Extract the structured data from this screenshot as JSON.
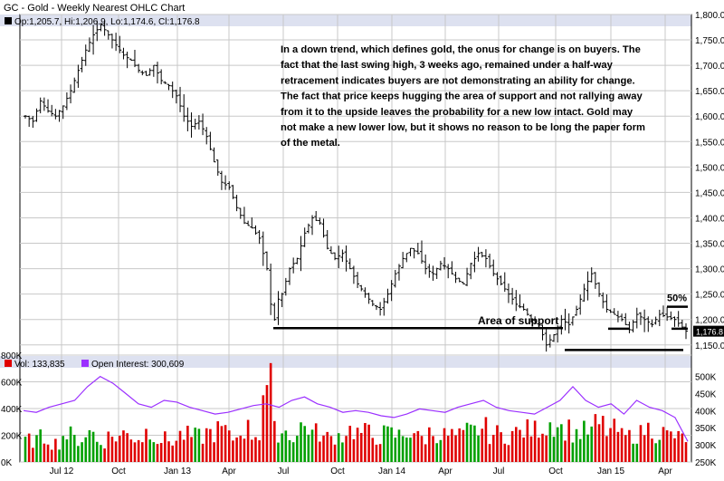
{
  "title": "GC - Gold - Weekly Nearest OHLC Chart",
  "price_legend": "Op:1,205.7, Hi:1,206.9, Lo:1,174.6, Cl:1,176.8",
  "volume_legend": "Vol: 133,835",
  "oi_legend": "Open Interest: 300,609",
  "annotation_lines": [
    "In a down trend, which defines gold, the onus for change is on buyers.  The",
    "fact that the last swing high, 3 weeks ago, remained under a half-way",
    "retracement indicates buyers are not demonstrating an ability for change.",
    "The fact that price keeps hugging the area of support and not rallying away",
    "from it to the upside leaves the probability for  a new low intact.  Gold may",
    "not make a new lower low, but it shows no reason to be long the paper form",
    "of the metal."
  ],
  "support_label": "Area of support",
  "fifty_label": "50%",
  "last_price_label": "1,176.8",
  "colors": {
    "price_bar": "#000000",
    "grid": "#c8c8c8",
    "volume_up": "#00a000",
    "volume_down": "#e00000",
    "open_interest": "#9b30ff",
    "header": "#dde1f0"
  },
  "chart_data": [
    {
      "type": "line",
      "name": "price",
      "x_ticks": [
        "Jul 12",
        "Oct",
        "Jan 13",
        "Apr",
        "Jul",
        "Oct",
        "Jan 14",
        "Apr",
        "Jul",
        "Oct",
        "Jan 15",
        "Apr"
      ],
      "y_ticks": [
        "1,800.00",
        "1,750.00",
        "1,700.00",
        "1,650.00",
        "1,600.00",
        "1,550.00",
        "1,500.00",
        "1,450.00",
        "1,400.00",
        "1,350.00",
        "1,300.00",
        "1,250.00",
        "1,200.00",
        "1,150.00"
      ],
      "ylim": [
        1130,
        1800
      ],
      "close_path": [
        [
          0,
          1600
        ],
        [
          2,
          1590
        ],
        [
          4,
          1630
        ],
        [
          6,
          1610
        ],
        [
          8,
          1600
        ],
        [
          10,
          1620
        ],
        [
          12,
          1650
        ],
        [
          14,
          1690
        ],
        [
          16,
          1730
        ],
        [
          18,
          1760
        ],
        [
          20,
          1780
        ],
        [
          22,
          1760
        ],
        [
          24,
          1740
        ],
        [
          26,
          1720
        ],
        [
          28,
          1710
        ],
        [
          30,
          1690
        ],
        [
          32,
          1680
        ],
        [
          34,
          1700
        ],
        [
          36,
          1670
        ],
        [
          38,
          1660
        ],
        [
          40,
          1640
        ],
        [
          42,
          1600
        ],
        [
          44,
          1580
        ],
        [
          46,
          1590
        ],
        [
          48,
          1560
        ],
        [
          50,
          1510
        ],
        [
          52,
          1470
        ],
        [
          54,
          1460
        ],
        [
          56,
          1420
        ],
        [
          58,
          1390
        ],
        [
          60,
          1380
        ],
        [
          62,
          1360
        ],
        [
          64,
          1300
        ],
        [
          65,
          1230
        ],
        [
          66,
          1200
        ],
        [
          67,
          1240
        ],
        [
          68,
          1250
        ],
        [
          70,
          1300
        ],
        [
          72,
          1320
        ],
        [
          74,
          1370
        ],
        [
          76,
          1400
        ],
        [
          78,
          1390
        ],
        [
          80,
          1340
        ],
        [
          82,
          1320
        ],
        [
          84,
          1330
        ],
        [
          86,
          1300
        ],
        [
          88,
          1270
        ],
        [
          90,
          1250
        ],
        [
          92,
          1230
        ],
        [
          94,
          1220
        ],
        [
          96,
          1250
        ],
        [
          98,
          1290
        ],
        [
          100,
          1320
        ],
        [
          102,
          1340
        ],
        [
          104,
          1330
        ],
        [
          106,
          1300
        ],
        [
          108,
          1290
        ],
        [
          110,
          1310
        ],
        [
          112,
          1300
        ],
        [
          114,
          1280
        ],
        [
          116,
          1270
        ],
        [
          118,
          1310
        ],
        [
          120,
          1330
        ],
        [
          122,
          1320
        ],
        [
          124,
          1290
        ],
        [
          126,
          1270
        ],
        [
          128,
          1250
        ],
        [
          130,
          1230
        ],
        [
          132,
          1220
        ],
        [
          134,
          1200
        ],
        [
          136,
          1190
        ],
        [
          137,
          1170
        ],
        [
          138,
          1150
        ],
        [
          140,
          1170
        ],
        [
          142,
          1200
        ],
        [
          144,
          1190
        ],
        [
          146,
          1220
        ],
        [
          148,
          1260
        ],
        [
          150,
          1290
        ],
        [
          152,
          1250
        ],
        [
          154,
          1220
        ],
        [
          156,
          1210
        ],
        [
          158,
          1200
        ],
        [
          160,
          1180
        ],
        [
          162,
          1210
        ],
        [
          164,
          1200
        ],
        [
          166,
          1190
        ],
        [
          168,
          1210
        ],
        [
          170,
          1205
        ],
        [
          172,
          1200
        ],
        [
          174,
          1185
        ],
        [
          175,
          1177
        ]
      ],
      "support_level": 1183,
      "lower_support_level": 1140,
      "fifty_percent_level": 1225,
      "mid_level": 1182
    },
    {
      "type": "bar",
      "name": "volume",
      "y_ticks": [
        "800K",
        "600K",
        "400K",
        "200K",
        "0K"
      ],
      "ylim": [
        0,
        800000
      ],
      "sample_values": [
        170000,
        190000,
        150000,
        210000,
        180000,
        230000,
        160000,
        200000,
        220000,
        190000,
        240000,
        180000,
        170000,
        210000,
        200000,
        230000,
        250000,
        190000,
        260000,
        220000,
        600000,
        240000,
        210000,
        280000,
        230000,
        190000,
        210000,
        250000,
        230000,
        200000,
        220000,
        210000,
        240000,
        190000,
        230000,
        210000,
        200000,
        240000,
        260000,
        220000,
        210000,
        230000,
        250000,
        280000,
        310000,
        260000,
        230000,
        240000,
        290000,
        250000,
        200000,
        220000,
        260000,
        230000,
        210000,
        190000
      ]
    },
    {
      "type": "line",
      "name": "open interest",
      "y_ticks": [
        "500K",
        "450K",
        "400K",
        "350K",
        "300K",
        "250K"
      ],
      "ylim": [
        250000,
        520000
      ],
      "sample_values": [
        400000,
        395000,
        410000,
        420000,
        430000,
        470000,
        500000,
        480000,
        450000,
        420000,
        410000,
        430000,
        425000,
        410000,
        400000,
        390000,
        395000,
        405000,
        415000,
        420000,
        410000,
        430000,
        440000,
        420000,
        410000,
        395000,
        400000,
        395000,
        385000,
        380000,
        390000,
        405000,
        400000,
        395000,
        410000,
        420000,
        430000,
        410000,
        400000,
        395000,
        390000,
        410000,
        430000,
        470000,
        430000,
        410000,
        420000,
        390000,
        430000,
        410000,
        400000,
        380000,
        310000
      ]
    }
  ]
}
